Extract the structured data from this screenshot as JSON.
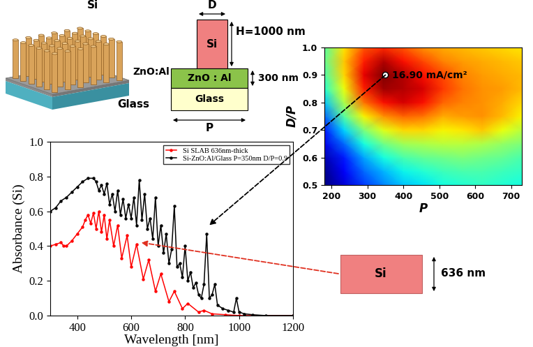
{
  "illustration": {
    "top_label": "Si",
    "layer_label": "ZnO:Al",
    "substrate_label": "Glass"
  },
  "cross_section": {
    "width_label": "D",
    "height_label": "H=1000 nm",
    "layer_label": "ZnO : Al",
    "layer_thickness_label": "300 nm",
    "substrate_label": "Glass",
    "period_label": "P",
    "top_label": "Si"
  },
  "slab": {
    "label": "Si",
    "thickness_label": "636 nm"
  },
  "chart_data": [
    {
      "type": "line",
      "xlabel": "Wavelength [nm]",
      "ylabel": "Absorbance (Si)",
      "xlim": [
        300,
        1200
      ],
      "ylim": [
        0.0,
        1.0
      ],
      "xticks": [
        400,
        600,
        800,
        1000,
        1200
      ],
      "yticks": [
        0.0,
        0.2,
        0.4,
        0.6,
        0.8,
        1.0
      ],
      "legend": "upper right",
      "series": [
        {
          "name": "Si SLAB 636nm-thick",
          "color": "#ff0000",
          "marker": "o",
          "x": [
            300,
            320,
            340,
            350,
            360,
            380,
            400,
            420,
            430,
            440,
            450,
            460,
            470,
            480,
            490,
            500,
            510,
            520,
            535,
            550,
            565,
            585,
            600,
            620,
            645,
            665,
            690,
            710,
            740,
            760,
            790,
            810,
            850,
            870,
            900,
            950,
            1000,
            1200
          ],
          "values": [
            0.4,
            0.41,
            0.42,
            0.4,
            0.4,
            0.43,
            0.47,
            0.51,
            0.55,
            0.58,
            0.53,
            0.59,
            0.5,
            0.6,
            0.48,
            0.58,
            0.44,
            0.55,
            0.4,
            0.52,
            0.33,
            0.46,
            0.28,
            0.41,
            0.21,
            0.32,
            0.14,
            0.24,
            0.08,
            0.14,
            0.04,
            0.07,
            0.02,
            0.03,
            0.01,
            0.005,
            0.0,
            0.0
          ]
        },
        {
          "name": "Si-ZnO:Al/Glass P=350nm D/P=0.9",
          "color": "#000000",
          "marker": "o",
          "x": [
            300,
            320,
            340,
            360,
            380,
            400,
            420,
            440,
            460,
            470,
            480,
            490,
            500,
            510,
            520,
            530,
            540,
            550,
            560,
            570,
            580,
            590,
            600,
            610,
            620,
            630,
            640,
            650,
            660,
            670,
            680,
            690,
            700,
            710,
            720,
            730,
            740,
            750,
            760,
            770,
            780,
            790,
            800,
            810,
            820,
            830,
            840,
            850,
            860,
            870,
            880,
            890,
            900,
            910,
            920,
            940,
            960,
            980,
            990,
            1000,
            1020,
            1050,
            1100,
            1200
          ],
          "values": [
            0.6,
            0.62,
            0.66,
            0.68,
            0.71,
            0.74,
            0.77,
            0.79,
            0.79,
            0.77,
            0.72,
            0.75,
            0.7,
            0.76,
            0.64,
            0.7,
            0.6,
            0.72,
            0.58,
            0.67,
            0.56,
            0.64,
            0.56,
            0.68,
            0.52,
            0.78,
            0.55,
            0.7,
            0.5,
            0.56,
            0.44,
            0.68,
            0.4,
            0.52,
            0.36,
            0.47,
            0.3,
            0.38,
            0.63,
            0.28,
            0.3,
            0.22,
            0.4,
            0.2,
            0.25,
            0.16,
            0.19,
            0.12,
            0.1,
            0.18,
            0.47,
            0.1,
            0.12,
            0.18,
            0.06,
            0.04,
            0.03,
            0.02,
            0.1,
            0.02,
            0.01,
            0.005,
            0.0,
            0.0
          ]
        }
      ]
    },
    {
      "type": "heatmap",
      "xlabel": "P",
      "ylabel": "D/P",
      "xlim": [
        180,
        730
      ],
      "ylim": [
        0.5,
        1.0
      ],
      "xticks": [
        200,
        300,
        400,
        500,
        600,
        700
      ],
      "yticks": [
        0.5,
        0.6,
        0.7,
        0.8,
        0.9,
        1.0
      ],
      "x": [
        180,
        235,
        290,
        345,
        400,
        455,
        510,
        565,
        620,
        675,
        730
      ],
      "y": [
        0.5,
        0.55,
        0.6,
        0.65,
        0.7,
        0.75,
        0.8,
        0.85,
        0.9,
        0.95,
        1.0
      ],
      "cells": [
        [
          10.3,
          10.8,
          11.5,
          12.0,
          12.4,
          12.6,
          12.8,
          12.9,
          13.0,
          12.9,
          12.8
        ],
        [
          10.4,
          11.0,
          11.8,
          12.3,
          12.7,
          12.9,
          13.1,
          13.2,
          13.2,
          13.1,
          13.0
        ],
        [
          10.6,
          11.3,
          12.2,
          12.8,
          13.2,
          13.4,
          13.5,
          13.6,
          13.5,
          13.4,
          13.2
        ],
        [
          10.9,
          11.8,
          12.8,
          13.5,
          13.9,
          14.0,
          14.1,
          14.1,
          14.0,
          13.8,
          13.6
        ],
        [
          11.3,
          12.5,
          13.6,
          14.4,
          14.8,
          14.8,
          14.6,
          14.7,
          14.9,
          14.5,
          14.1
        ],
        [
          11.8,
          13.3,
          14.6,
          15.3,
          15.6,
          15.5,
          15.1,
          15.2,
          15.3,
          15.0,
          14.6
        ],
        [
          12.4,
          14.0,
          15.5,
          16.2,
          16.4,
          16.2,
          15.6,
          15.4,
          15.3,
          15.1,
          14.8
        ],
        [
          12.9,
          14.5,
          16.1,
          16.7,
          16.6,
          16.4,
          15.9,
          15.5,
          15.3,
          15.2,
          15.0
        ],
        [
          13.2,
          14.8,
          16.3,
          16.9,
          16.6,
          16.2,
          15.8,
          15.4,
          15.2,
          15.1,
          15.0
        ],
        [
          13.4,
          14.9,
          16.1,
          16.6,
          16.2,
          15.8,
          15.4,
          15.2,
          15.1,
          15.0,
          14.9
        ],
        [
          13.3,
          14.7,
          15.7,
          16.0,
          15.7,
          15.3,
          15.1,
          15.0,
          14.9,
          14.8,
          14.7
        ]
      ],
      "highlight": {
        "x": 350,
        "y": 0.9,
        "label": "16.90 mA/cm²"
      }
    }
  ]
}
